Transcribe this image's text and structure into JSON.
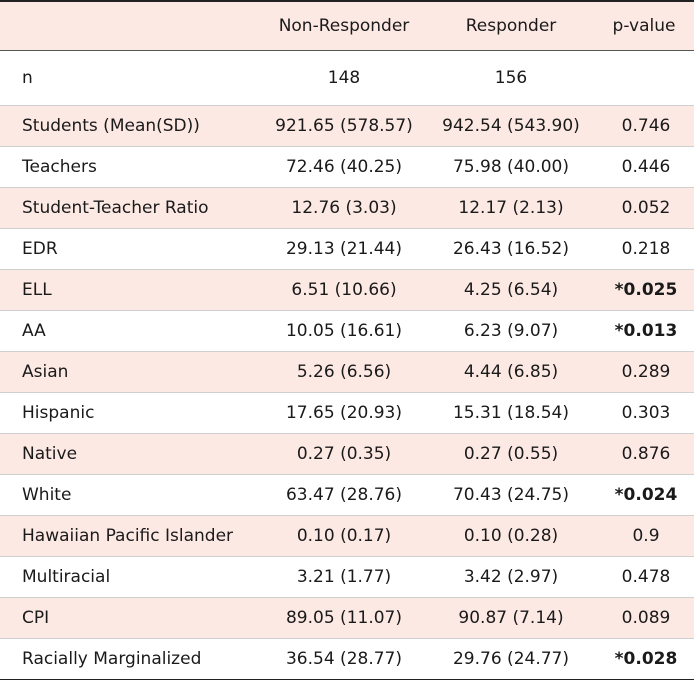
{
  "table": {
    "headers": [
      "",
      "Non-Responder",
      "Responder",
      "p-value"
    ],
    "rows": [
      {
        "label": "n",
        "non_responder": "148",
        "responder": "156",
        "p_value": "",
        "significant": false
      },
      {
        "label": "Students (Mean(SD))",
        "non_responder": "921.65 (578.57)",
        "responder": "942.54 (543.90)",
        "p_value": "0.746",
        "significant": false
      },
      {
        "label": "Teachers",
        "non_responder": "72.46 (40.25)",
        "responder": "75.98 (40.00)",
        "p_value": "0.446",
        "significant": false
      },
      {
        "label": "Student-Teacher Ratio",
        "non_responder": "12.76 (3.03)",
        "responder": "12.17 (2.13)",
        "p_value": "0.052",
        "significant": false
      },
      {
        "label": "EDR",
        "non_responder": "29.13 (21.44)",
        "responder": "26.43 (16.52)",
        "p_value": "0.218",
        "significant": false
      },
      {
        "label": "ELL",
        "non_responder": "6.51 (10.66)",
        "responder": "4.25 (6.54)",
        "p_value": "*0.025",
        "significant": true
      },
      {
        "label": "AA",
        "non_responder": "10.05 (16.61)",
        "responder": "6.23 (9.07)",
        "p_value": "*0.013",
        "significant": true
      },
      {
        "label": "Asian",
        "non_responder": "5.26 (6.56)",
        "responder": "4.44 (6.85)",
        "p_value": "0.289",
        "significant": false
      },
      {
        "label": "Hispanic",
        "non_responder": "17.65 (20.93)",
        "responder": "15.31 (18.54)",
        "p_value": "0.303",
        "significant": false
      },
      {
        "label": "Native",
        "non_responder": "0.27 (0.35)",
        "responder": "0.27 (0.55)",
        "p_value": "0.876",
        "significant": false
      },
      {
        "label": "White",
        "non_responder": "63.47 (28.76)",
        "responder": "70.43 (24.75)",
        "p_value": "*0.024",
        "significant": true
      },
      {
        "label": "Hawaiian Pacific Islander",
        "non_responder": "0.10 (0.17)",
        "responder": "0.10 (0.28)",
        "p_value": "0.9",
        "significant": false
      },
      {
        "label": "Multiracial",
        "non_responder": "3.21 (1.77)",
        "responder": "3.42 (2.97)",
        "p_value": "0.478",
        "significant": false
      },
      {
        "label": "CPI",
        "non_responder": "89.05 (11.07)",
        "responder": "90.87 (7.14)",
        "p_value": "0.089",
        "significant": false
      },
      {
        "label": "Racially Marginalized",
        "non_responder": "36.54 (28.77)",
        "responder": "29.76 (24.77)",
        "p_value": "*0.028",
        "significant": true
      }
    ]
  }
}
